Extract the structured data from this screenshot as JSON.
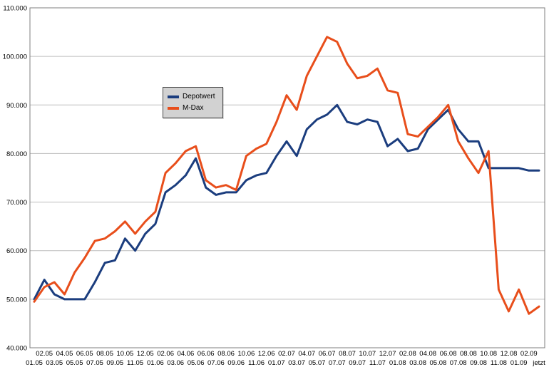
{
  "colors": {
    "background": "#ffffff",
    "grid": "#bdbdbd",
    "axis_border": "#7f7f7f",
    "text": "#000000",
    "legend_bg": "#d2d2d2",
    "legend_border": "#4a4a4a"
  },
  "chart_data": {
    "type": "line",
    "title": "",
    "xlabel": "",
    "ylabel": "",
    "grid": true,
    "legend_position": "inside-upper-left",
    "ylim": [
      40000,
      110000
    ],
    "y_ticks": [
      {
        "value": 40000,
        "label": "40.000"
      },
      {
        "value": 50000,
        "label": "50.000"
      },
      {
        "value": 60000,
        "label": "60.000"
      },
      {
        "value": 70000,
        "label": "70.000"
      },
      {
        "value": 80000,
        "label": "80.000"
      },
      {
        "value": 90000,
        "label": "90.000"
      },
      {
        "value": 100000,
        "label": "100.000"
      },
      {
        "value": 110000,
        "label": "110.000"
      }
    ],
    "categories": [
      "01.05",
      "02.05",
      "03.05",
      "04.05",
      "05.05",
      "06.05",
      "07.05",
      "08.05",
      "09.05",
      "10.05",
      "11.05",
      "12.05",
      "01.06",
      "02.06",
      "03.06",
      "04.06",
      "05.06",
      "06.06",
      "07.06",
      "08.06",
      "09.06",
      "10.06",
      "11.06",
      "12.06",
      "01.07",
      "02.07",
      "03.07",
      "04.07",
      "05.07",
      "06.07",
      "07.07",
      "08.07",
      "09.07",
      "10.07",
      "11.07",
      "12.07",
      "01.08",
      "02.08",
      "03.08",
      "04.08",
      "05.08",
      "06.08",
      "07.08",
      "08.08",
      "09.08",
      "10.08",
      "11.08",
      "12.08",
      "01.09",
      "02.09",
      "jetzt"
    ],
    "series": [
      {
        "name": "Depotwert",
        "color": "#1b3d7e",
        "values": [
          50000,
          54000,
          51000,
          50000,
          50000,
          50000,
          53500,
          57500,
          58000,
          62500,
          60000,
          63500,
          65500,
          72000,
          73500,
          75500,
          79000,
          73000,
          71500,
          72000,
          72000,
          74500,
          75500,
          76000,
          79500,
          82500,
          79500,
          85000,
          87000,
          88000,
          90000,
          86500,
          86000,
          87000,
          86500,
          81500,
          83000,
          80500,
          81000,
          85000,
          87000,
          89000,
          85000,
          82500,
          82500,
          77000,
          77000,
          77000,
          77000,
          76500,
          76500
        ]
      },
      {
        "name": "M-Dax",
        "color": "#e84e1b",
        "values": [
          49500,
          52500,
          53500,
          51000,
          55500,
          58500,
          62000,
          62500,
          64000,
          66000,
          63500,
          66000,
          68000,
          76000,
          78000,
          80500,
          81500,
          74500,
          73000,
          73500,
          72500,
          79500,
          81000,
          82000,
          86500,
          92000,
          89000,
          96000,
          100000,
          104000,
          103000,
          98500,
          95500,
          96000,
          97500,
          93000,
          92500,
          84000,
          83500,
          85500,
          87500,
          90000,
          82500,
          79000,
          76000,
          80500,
          52000,
          47500,
          52000,
          47000,
          48500
        ]
      }
    ]
  }
}
